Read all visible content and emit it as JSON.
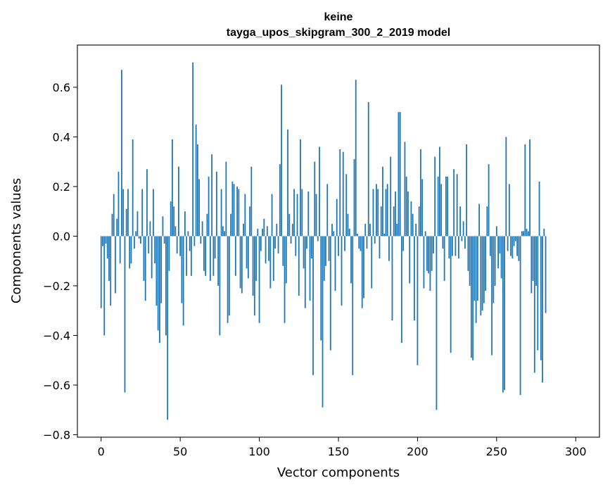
{
  "chart_data": {
    "type": "bar",
    "title_line1": "keine",
    "title_line2": "tayga_upos_skipgram_300_2_2019 model",
    "xlabel": "Vector components",
    "ylabel": "Components values",
    "xlim": [
      -15,
      315
    ],
    "ylim": [
      -0.81,
      0.77
    ],
    "xticks": [
      0,
      50,
      100,
      150,
      200,
      250,
      300
    ],
    "xtick_labels": [
      "0",
      "50",
      "100",
      "150",
      "200",
      "250",
      "300"
    ],
    "yticks": [
      -0.8,
      -0.6,
      -0.4,
      -0.2,
      0.0,
      0.2,
      0.4,
      0.6
    ],
    "ytick_labels": [
      "−0.8",
      "−0.6",
      "−0.4",
      "−0.2",
      "0.0",
      "0.2",
      "0.4",
      "0.6"
    ],
    "bar_color": "#1f77b4",
    "values": [
      -0.29,
      -0.04,
      -0.4,
      -0.03,
      -0.09,
      -0.18,
      -0.28,
      0.09,
      0.17,
      -0.23,
      0.07,
      0.26,
      -0.11,
      0.67,
      0.19,
      -0.63,
      0.11,
      0.19,
      -0.13,
      -0.11,
      0.39,
      -0.05,
      0.02,
      0.1,
      -0.01,
      -0.03,
      0.19,
      -0.18,
      -0.26,
      0.27,
      -0.07,
      0.06,
      -0.17,
      0.19,
      -0.11,
      -0.28,
      -0.38,
      -0.43,
      -0.27,
      0.08,
      -0.03,
      -0.4,
      -0.74,
      -0.14,
      0.14,
      0.39,
      0.12,
      0.04,
      -0.07,
      0.28,
      -0.08,
      -0.27,
      -0.36,
      0.1,
      -0.16,
      0.02,
      -0.06,
      -0.16,
      0.7,
      -0.04,
      0.45,
      0.37,
      0.23,
      -0.03,
      0.06,
      -0.14,
      -0.16,
      0.09,
      0.24,
      -0.18,
      0.33,
      -0.16,
      -0.09,
      0.26,
      -0.2,
      -0.4,
      0.19,
      0.04,
      0.02,
      0.3,
      -0.35,
      -0.32,
      0.09,
      0.22,
      0.21,
      -0.16,
      0.2,
      0.19,
      -0.21,
      -0.23,
      0.05,
      0.17,
      -0.13,
      -0.17,
      0.12,
      0.28,
      -0.24,
      -0.32,
      -0.18,
      0.03,
      -0.35,
      -0.06,
      0.03,
      0.07,
      -0.11,
      0.04,
      -0.1,
      -0.21,
      0.17,
      -0.18,
      -0.05,
      0.05,
      -0.07,
      0.29,
      0.61,
      -0.12,
      -0.35,
      -0.19,
      0.43,
      0.09,
      -0.03,
      0.05,
      0.19,
      -0.08,
      0.17,
      -0.24,
      0.39,
      0.19,
      -0.13,
      -0.29,
      -0.05,
      0.18,
      -0.26,
      -0.09,
      -0.56,
      0.3,
      0.17,
      -0.02,
      0.36,
      -0.42,
      -0.69,
      -0.18,
      -0.12,
      0.21,
      -0.1,
      -0.46,
      0.05,
      0.02,
      -0.22,
      0.15,
      -0.08,
      0.35,
      -0.28,
      0.34,
      -0.06,
      0.25,
      0.09,
      0.03,
      -0.19,
      -0.56,
      0.31,
      0.63,
      0.01,
      -0.05,
      -0.06,
      -0.29,
      -0.25,
      0.05,
      -0.05,
      0.54,
      0.05,
      -0.21,
      0.19,
      -0.03,
      0.21,
      0.19,
      -0.09,
      0.12,
      0.28,
      0.01,
      0.19,
      0.21,
      -0.1,
      0.32,
      -0.34,
      0.12,
      0.18,
      0.05,
      0.5,
      0.5,
      -0.43,
      -0.06,
      0.38,
      0.24,
      0.18,
      -0.19,
      0.14,
      0.09,
      -0.34,
      0.05,
      -0.52,
      0.12,
      0.35,
      0.23,
      -0.21,
      0.02,
      -0.14,
      -0.15,
      -0.22,
      -0.14,
      -0.07,
      0.32,
      -0.7,
      0.24,
      0.36,
      0.21,
      -0.05,
      -0.18,
      0.24,
      0.24,
      -0.09,
      -0.47,
      -0.08,
      0.27,
      -0.08,
      0.25,
      -0.09,
      0.12,
      -0.02,
      0.06,
      -0.05,
      0.37,
      -0.14,
      -0.2,
      -0.49,
      -0.5,
      -0.26,
      -0.35,
      -0.26,
      0.13,
      -0.32,
      -0.3,
      -0.27,
      -0.22,
      0.12,
      0.29,
      -0.08,
      -0.48,
      -0.27,
      -0.2,
      0.04,
      -0.13,
      -0.07,
      -0.17,
      -0.63,
      -0.62,
      0.4,
      -0.06,
      0.21,
      -0.08,
      -0.09,
      -0.04,
      -0.02,
      -0.08,
      -0.1,
      -0.64,
      0.02,
      0.02,
      0.37,
      0.03,
      0.02,
      0.39,
      -0.23,
      -0.18,
      -0.55,
      -0.2,
      -0.46,
      0.22,
      -0.5,
      -0.59,
      0.03,
      -0.31
    ]
  }
}
